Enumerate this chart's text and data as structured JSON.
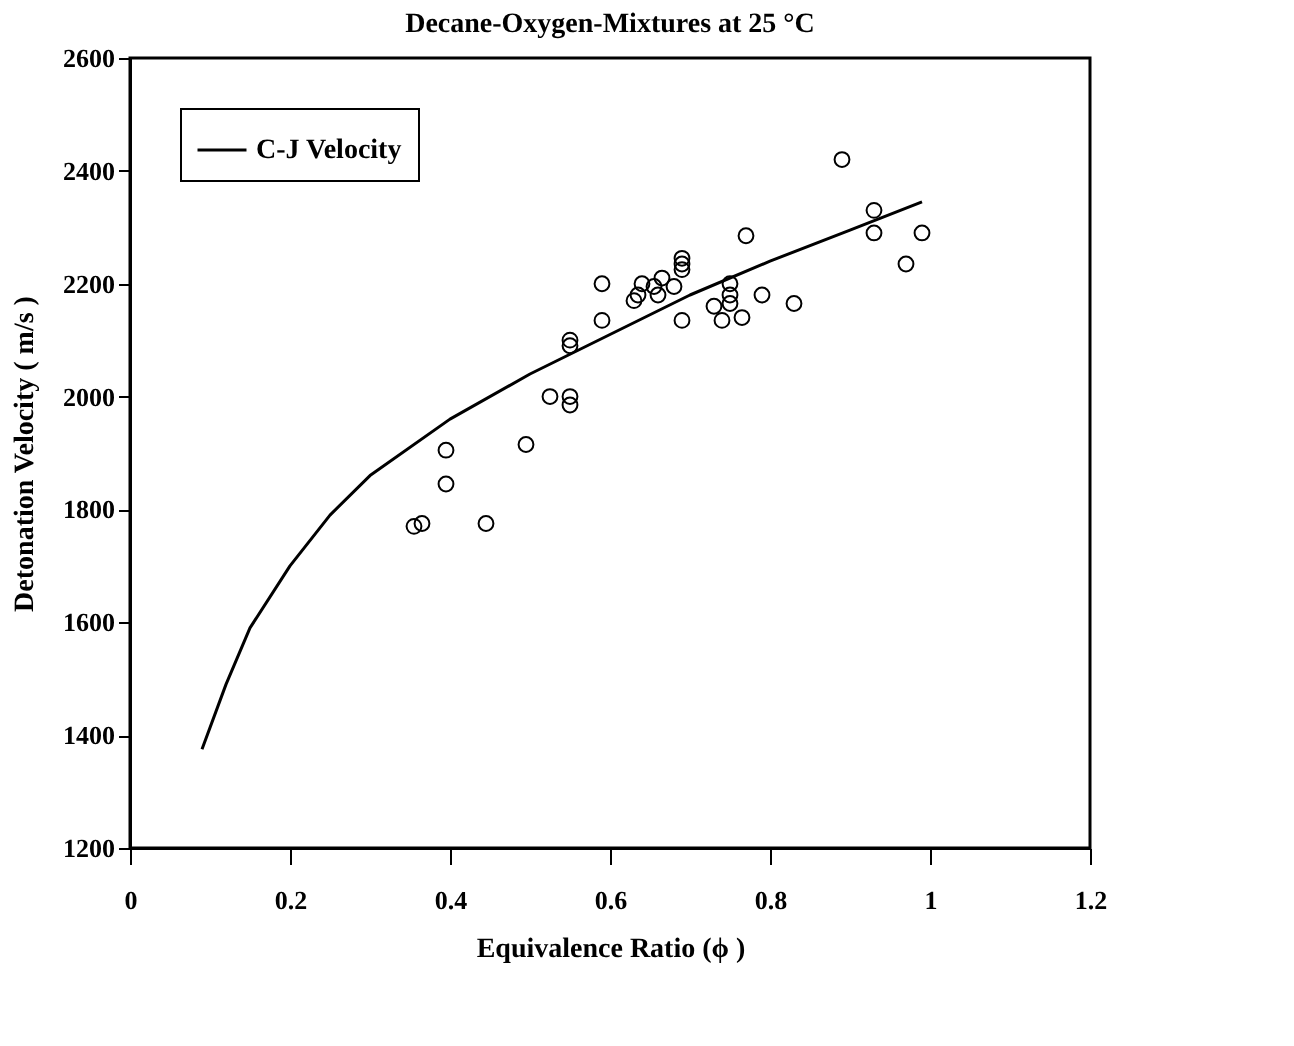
{
  "chart_data": {
    "type": "scatter",
    "title": "Decane-Oxygen-Mixtures at 25 °C",
    "xlabel": "Equivalence Ratio  (ϕ )",
    "ylabel": "Detonation  Velocity  ( m/s )",
    "xlim": [
      0,
      1.2
    ],
    "xticks": [
      0,
      0.2,
      0.4,
      0.6,
      0.8,
      1,
      1.2
    ],
    "ylim": [
      1200,
      2600
    ],
    "yticks": [
      1200,
      1400,
      1600,
      1800,
      2000,
      2200,
      2400,
      2600
    ],
    "grid": false,
    "legend": "top left",
    "series": [
      {
        "name": "C-J Velocity",
        "type": "line",
        "color": "#000000",
        "line_style": "solid",
        "marker": "none",
        "x": [
          0.09,
          0.12,
          0.15,
          0.2,
          0.25,
          0.3,
          0.4,
          0.5,
          0.6,
          0.7,
          0.8,
          0.9,
          0.99
        ],
        "values": [
          1375,
          1490,
          1590,
          1700,
          1790,
          1860,
          1960,
          2040,
          2110,
          2180,
          2240,
          2295,
          2345
        ]
      },
      {
        "color": "#000000",
        "marker": "circle",
        "x": [
          0.355,
          0.365,
          0.395,
          0.395,
          0.445,
          0.495,
          0.525,
          0.55,
          0.55,
          0.55,
          0.55,
          0.59,
          0.59,
          0.63,
          0.635,
          0.64,
          0.655,
          0.66,
          0.665,
          0.68,
          0.69,
          0.69,
          0.69,
          0.69,
          0.73,
          0.74,
          0.75,
          0.75,
          0.75,
          0.765,
          0.77,
          0.79,
          0.83,
          0.89,
          0.93,
          0.93,
          0.97,
          0.99
        ],
        "values": [
          1770,
          1775,
          1905,
          1845,
          1775,
          1915,
          2000,
          2000,
          1985,
          2100,
          2090,
          2200,
          2135,
          2170,
          2180,
          2200,
          2195,
          2180,
          2210,
          2195,
          2245,
          2235,
          2225,
          2135,
          2160,
          2135,
          2200,
          2180,
          2165,
          2140,
          2285,
          2180,
          2165,
          2420,
          2330,
          2290,
          2235,
          2290
        ]
      }
    ]
  }
}
